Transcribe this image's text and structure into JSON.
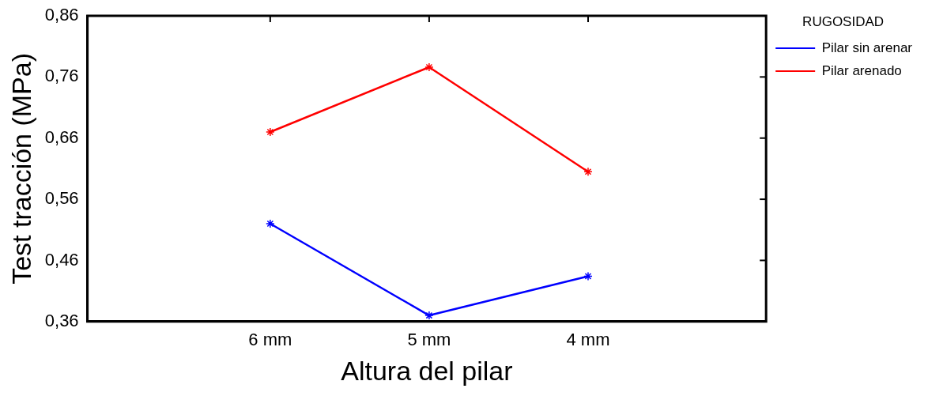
{
  "chart_data": {
    "type": "line",
    "xlabel": "Altura del pilar",
    "ylabel": "Test tracción (MPa)",
    "legend_title": "RUGOSIDAD",
    "categories": [
      "6 mm",
      "5 mm",
      "4 mm"
    ],
    "series": [
      {
        "name": "Pilar sin arenar",
        "color": "#0000ff",
        "values": [
          0.52,
          0.37,
          0.434
        ]
      },
      {
        "name": "Pilar arenado",
        "color": "#ff0000",
        "values": [
          0.67,
          0.776,
          0.605
        ]
      }
    ],
    "ylim": [
      0.36,
      0.86
    ],
    "yticks": [
      {
        "value": 0.36,
        "label": "0,36"
      },
      {
        "value": 0.46,
        "label": "0,46"
      },
      {
        "value": 0.56,
        "label": "0,56"
      },
      {
        "value": 0.66,
        "label": "0,66"
      },
      {
        "value": 0.76,
        "label": "0,76"
      },
      {
        "value": 0.86,
        "label": "0,86"
      }
    ],
    "grid": false,
    "legend": "right",
    "marker": "cross",
    "line_style": "solid"
  }
}
